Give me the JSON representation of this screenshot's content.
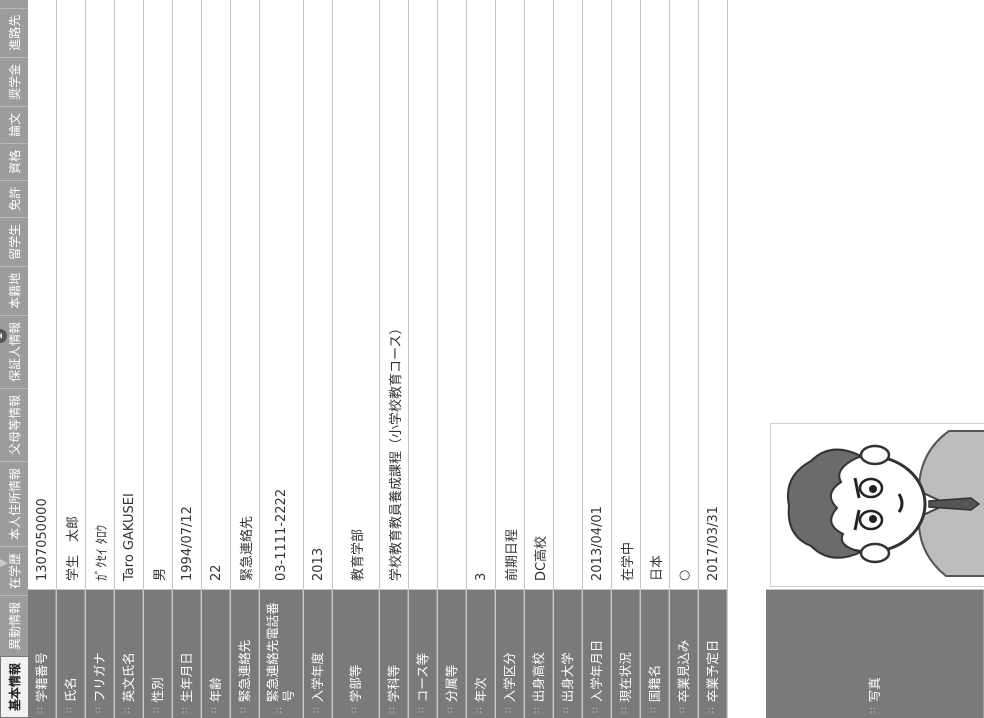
{
  "tabs": [
    "基本情報",
    "異動情報",
    "在学歴",
    "本人住所情報",
    "父母等情報",
    "保証人情報",
    "本籍地",
    "留学生",
    "免許",
    "資格",
    "論文",
    "奨学金",
    "進路先"
  ],
  "marker": "1",
  "rows": [
    {
      "label": "学籍番号",
      "value": "1307050000"
    },
    {
      "label": "氏名",
      "value": "学生　太郎"
    },
    {
      "label": "フリガナ",
      "value": "ｶﾞｸｾｲ ﾀﾛｳ"
    },
    {
      "label": "英文氏名",
      "value": "Taro GAKUSEI"
    },
    {
      "label": "性別",
      "value": "男"
    },
    {
      "label": "生年月日",
      "value": "1994/07/12"
    },
    {
      "label": "年齢",
      "value": "22"
    },
    {
      "label": "緊急連絡先",
      "value": "緊急連絡先"
    },
    {
      "label": "緊急連絡先電話番号",
      "value": "03-1111-2222"
    },
    {
      "label": "入学年度",
      "value": "2013"
    },
    {
      "label": "学部等",
      "value": "教育学部"
    },
    {
      "label": "学科等",
      "value": "学校教育教員養成課程（小学校教育コース）"
    },
    {
      "label": "コース等",
      "value": ""
    },
    {
      "label": "分属等",
      "value": ""
    },
    {
      "label": "年次",
      "value": "3"
    },
    {
      "label": "入学区分",
      "value": "前期日程"
    },
    {
      "label": "出身高校",
      "value": "DC高校"
    },
    {
      "label": "出身大学",
      "value": ""
    },
    {
      "label": "入学年月日",
      "value": "2013/04/01"
    },
    {
      "label": "現在状況",
      "value": "在学中"
    },
    {
      "label": "国籍名",
      "value": "日本"
    },
    {
      "label": "卒業見込み",
      "value": "○"
    },
    {
      "label": "卒業予定日",
      "value": "2017/03/31"
    }
  ],
  "photo_label": "写真",
  "photo_icon": "student-portrait-photo"
}
